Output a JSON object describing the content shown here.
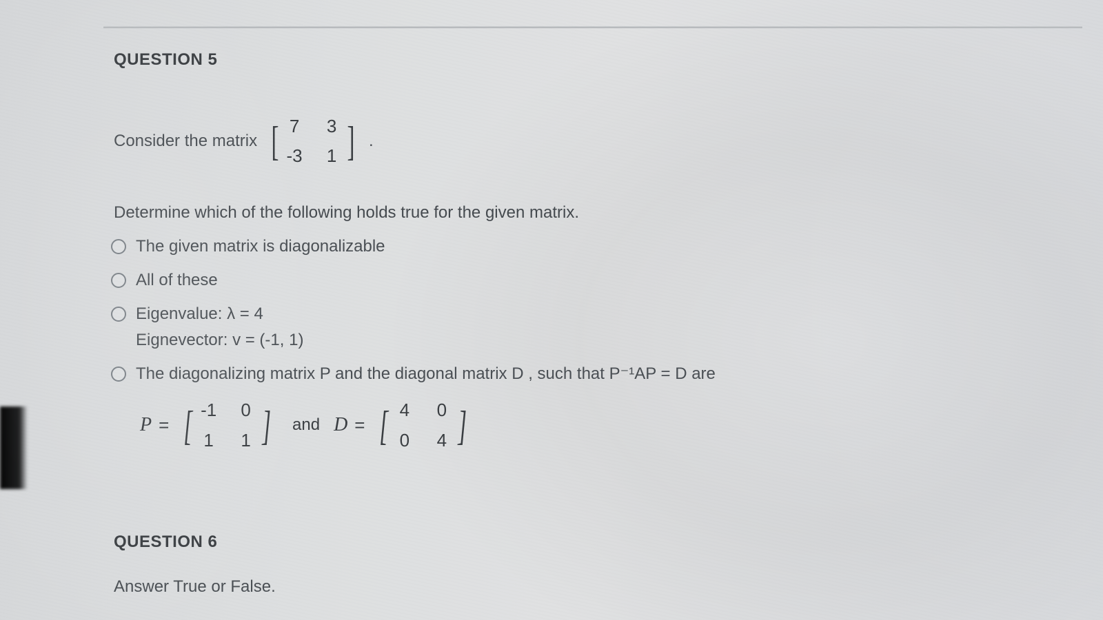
{
  "question5": {
    "title": "QUESTION 5",
    "prompt_prefix": "Consider the matrix",
    "matrix_A": [
      [
        "7",
        "3"
      ],
      [
        "-3",
        "1"
      ]
    ],
    "prompt_suffix": ".",
    "instruction": "Determine which of the following holds true for the given matrix.",
    "options": [
      {
        "lines": [
          "The given matrix is diagonalizable"
        ]
      },
      {
        "lines": [
          "All of these"
        ]
      },
      {
        "lines": [
          "Eigenvalue: λ = 4",
          "Eignevector: v = (-1, 1)"
        ]
      },
      {
        "lines": [
          "The diagonalizing matrix P and the diagonal matrix D , such that P⁻¹AP = D are"
        ]
      }
    ],
    "P_label": "P",
    "D_label": "D",
    "and_word": "and",
    "eq": "=",
    "matrix_P": [
      [
        "-1",
        "0"
      ],
      [
        "1",
        "1"
      ]
    ],
    "matrix_D": [
      [
        "4",
        "0"
      ],
      [
        "0",
        "4"
      ]
    ]
  },
  "question6": {
    "title": "QUESTION 6",
    "text": "Answer True or False."
  },
  "colors": {
    "text": "#3a3f44",
    "rule": "#b8bbbe",
    "radio_border": "#7a8086"
  }
}
